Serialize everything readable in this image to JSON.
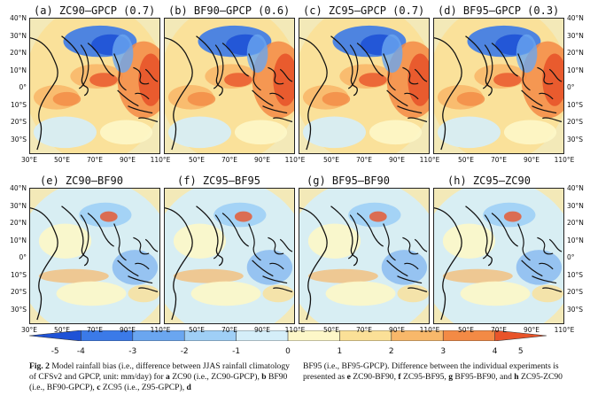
{
  "panels": [
    {
      "title": "(a) ZC90–GPCP (0.7)"
    },
    {
      "title": "(b) BF90–GPCP (0.6)"
    },
    {
      "title": "(c) ZC95–GPCP (0.7)"
    },
    {
      "title": "(d) BF95–GPCP (0.3)"
    },
    {
      "title": "(e) ZC90–BF90"
    },
    {
      "title": "(f) ZC95–BF95"
    },
    {
      "title": "(g) BF95–BF90"
    },
    {
      "title": "(h) ZC95–ZC90"
    }
  ],
  "lat_labels": [
    "40°N",
    "30°N",
    "20°N",
    "10°N",
    "0°",
    "10°S",
    "20°S",
    "30°S"
  ],
  "lon_labels": [
    "50°E",
    "70°E",
    "90°E",
    "110°E"
  ],
  "lon_labels_edge": [
    "30°E",
    "50°E",
    "70°E",
    "90°E",
    "110°E"
  ],
  "colorbar": {
    "ticks": [
      "-5",
      "-4",
      "-3",
      "-2",
      "-1",
      "0",
      "1",
      "2",
      "3",
      "4",
      "5"
    ],
    "colors": [
      "#1f52d6",
      "#3b7ae8",
      "#6aa6f0",
      "#9fcff6",
      "#d5eef9",
      "#fdf7c8",
      "#fbe097",
      "#f8b86a",
      "#f38a45",
      "#e8542a"
    ]
  },
  "caption": {
    "fig_label": "Fig. 2",
    "left_part1": " Model rainfall bias (i.e., difference between JJAS rainfall climatology of CFSv2 and GPCP, unit: mm/day) for ",
    "a": "a",
    "left_part2": " ZC90 (i.e., ZC90-GPCP), ",
    "b": "b",
    "left_part3": " BF90 (i.e., BF90-GPCP), ",
    "c": "c",
    "left_part4": " ZC95 (i.e., Z95-GPCP), ",
    "d": "d",
    "right_part1": "BF95 (i.e., BF95-GPCP). Difference between the individual experiments is presented as ",
    "e": "e",
    "right_part2": " ZC90-BF90, ",
    "f": "f",
    "right_part3": " ZC95-BF95, ",
    "g": "g",
    "right_part4": " BF95-BF90, and ",
    "h": "h",
    "right_part5": " ZC95-ZC90"
  }
}
